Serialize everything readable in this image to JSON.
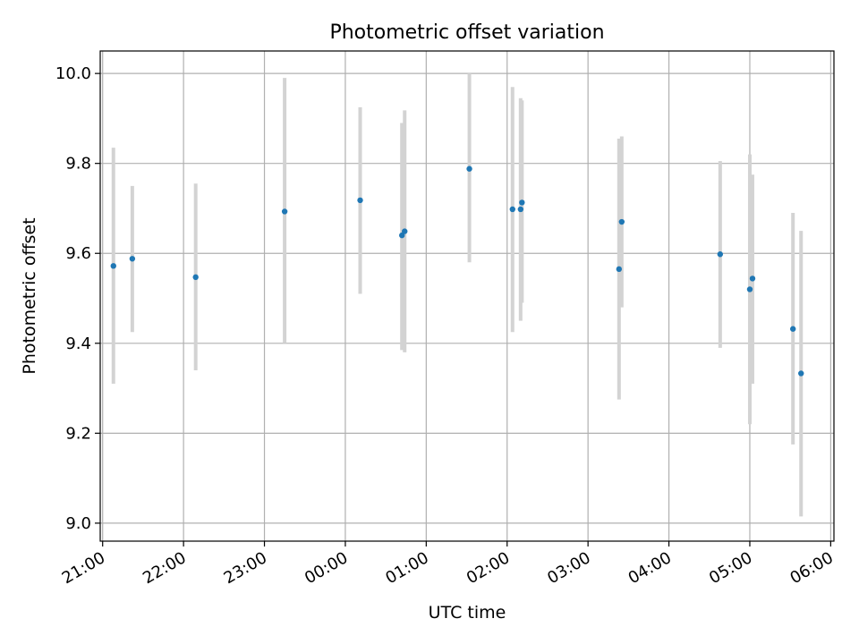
{
  "chart_data": {
    "type": "scatter",
    "title": "Photometric offset variation",
    "xlabel": "UTC time",
    "ylabel": "Photometric offset",
    "x_unit": "hours",
    "x_tick_labels": [
      "21:00",
      "22:00",
      "23:00",
      "00:00",
      "01:00",
      "02:00",
      "03:00",
      "04:00",
      "05:00",
      "06:00"
    ],
    "x_ticks_hours": [
      21,
      22,
      23,
      24,
      25,
      26,
      27,
      28,
      29,
      30
    ],
    "xlim_hours": [
      20.97,
      30.04
    ],
    "y_tick_labels": [
      "9.0",
      "9.2",
      "9.4",
      "9.6",
      "9.8",
      "10.0"
    ],
    "y_ticks": [
      9.0,
      9.2,
      9.4,
      9.6,
      9.8,
      10.0
    ],
    "ylim": [
      8.96,
      10.05
    ],
    "grid": true,
    "point_color": "#1f77b4",
    "errorbar_color": "#d3d3d3",
    "points": [
      {
        "time": "21:08",
        "y": 9.572,
        "lo": 9.31,
        "hi": 9.835
      },
      {
        "time": "21:22",
        "y": 9.588,
        "lo": 9.425,
        "hi": 9.75
      },
      {
        "time": "22:09",
        "y": 9.547,
        "lo": 9.34,
        "hi": 9.755
      },
      {
        "time": "23:15",
        "y": 9.693,
        "lo": 9.4,
        "hi": 9.99
      },
      {
        "time": "00:11",
        "y": 9.718,
        "lo": 9.51,
        "hi": 9.925
      },
      {
        "time": "00:42",
        "y": 9.64,
        "lo": 9.385,
        "hi": 9.89
      },
      {
        "time": "00:44",
        "y": 9.649,
        "lo": 9.38,
        "hi": 9.918
      },
      {
        "time": "01:32",
        "y": 9.788,
        "lo": 9.58,
        "hi": 10.0
      },
      {
        "time": "02:04",
        "y": 9.698,
        "lo": 9.425,
        "hi": 9.97
      },
      {
        "time": "02:10",
        "y": 9.698,
        "lo": 9.45,
        "hi": 9.945
      },
      {
        "time": "02:11",
        "y": 9.713,
        "lo": 9.49,
        "hi": 9.94
      },
      {
        "time": "03:23",
        "y": 9.565,
        "lo": 9.275,
        "hi": 9.855
      },
      {
        "time": "03:25",
        "y": 9.67,
        "lo": 9.48,
        "hi": 9.86
      },
      {
        "time": "04:38",
        "y": 9.598,
        "lo": 9.39,
        "hi": 9.805
      },
      {
        "time": "05:00",
        "y": 9.52,
        "lo": 9.22,
        "hi": 9.82
      },
      {
        "time": "05:02",
        "y": 9.544,
        "lo": 9.31,
        "hi": 9.775
      },
      {
        "time": "05:32",
        "y": 9.432,
        "lo": 9.175,
        "hi": 9.69
      },
      {
        "time": "05:38",
        "y": 9.333,
        "lo": 9.015,
        "hi": 9.65
      }
    ]
  }
}
